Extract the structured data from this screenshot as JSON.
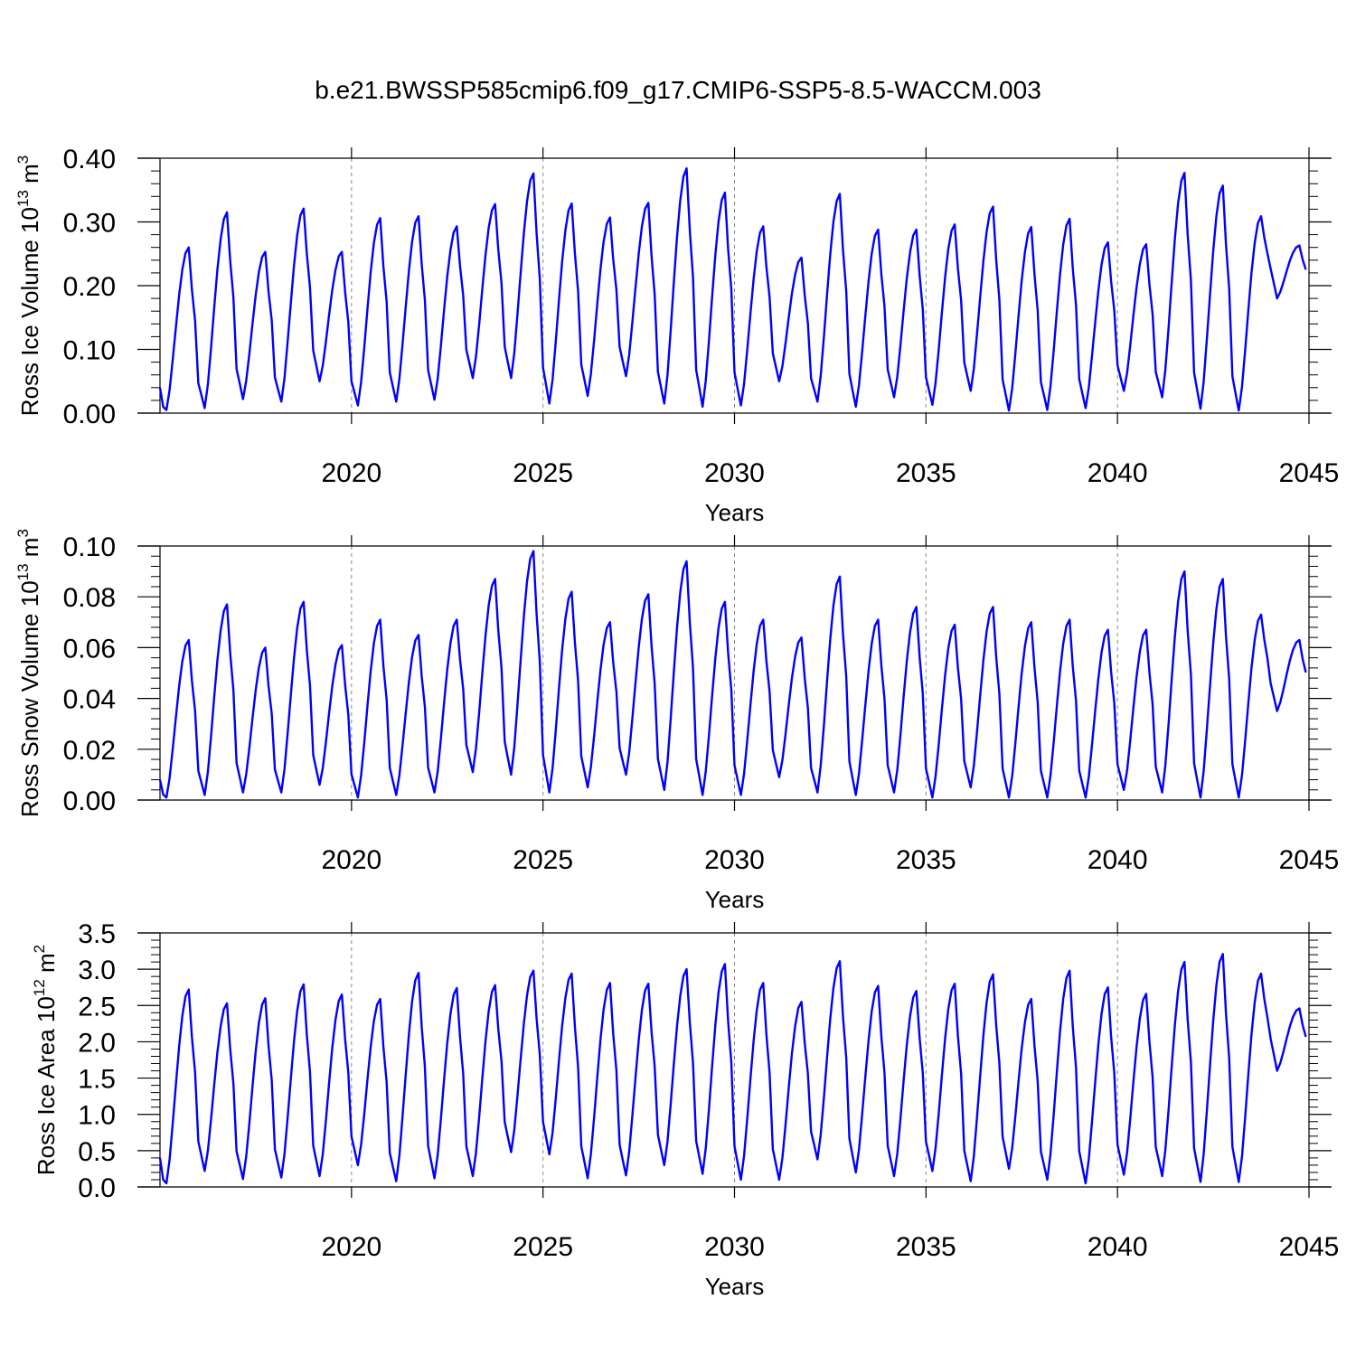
{
  "title": "b.e21.BWSSP585cmip6.f09_g17.CMIP6-SSP5-8.5-WACCM.003",
  "colors": {
    "series": "#0000ff",
    "axis": "#000000",
    "grid": "#888888"
  },
  "panels": [
    {
      "ylabel": "Ross Ice Volume 10",
      "ylabel_exp1": "13",
      "ylabel_mid": " m",
      "ylabel_exp2": "3",
      "xlabel": "Years",
      "ytick_labels": [
        "0.00",
        "0.10",
        "0.20",
        "0.30",
        "0.40"
      ]
    },
    {
      "ylabel": "Ross Snow Volume 10",
      "ylabel_exp1": "13",
      "ylabel_mid": " m",
      "ylabel_exp2": "3",
      "xlabel": "Years",
      "ytick_labels": [
        "0.00",
        "0.02",
        "0.04",
        "0.06",
        "0.08",
        "0.10"
      ]
    },
    {
      "ylabel": "Ross Ice Area 10",
      "ylabel_exp1": "12",
      "ylabel_mid": " m",
      "ylabel_exp2": "2",
      "xlabel": "Years",
      "ytick_labels": [
        "0.0",
        "0.5",
        "1.0",
        "1.5",
        "2.0",
        "2.5",
        "3.0",
        "3.5"
      ]
    }
  ],
  "xtick_labels": [
    "2020",
    "2025",
    "2030",
    "2035",
    "2040",
    "2045"
  ],
  "chart_data": [
    {
      "type": "line",
      "xlabel": "Years",
      "ylabel": "Ross Ice Volume 10^13 m^3",
      "xlim": [
        2015.0,
        2045.0
      ],
      "ylim": [
        0.0,
        0.4
      ],
      "xticks": [
        2020,
        2025,
        2030,
        2035,
        2040,
        2045
      ],
      "yticks": [
        0.0,
        0.1,
        0.2,
        0.3,
        0.4
      ],
      "grid": "dashed vertical lines at major x ticks",
      "series": [
        {
          "x_start": 2015.0,
          "x_step": 0.0833333,
          "annual_min_month": 2,
          "annual_max_month": 9,
          "annual_max": [
            0.26,
            0.315,
            0.253,
            0.321,
            0.253,
            0.306,
            0.309,
            0.293,
            0.328,
            0.376,
            0.329,
            0.307,
            0.33,
            0.384,
            0.346,
            0.293,
            0.244,
            0.344,
            0.288,
            0.288,
            0.296,
            0.324,
            0.292,
            0.305,
            0.268,
            0.265,
            0.377,
            0.357,
            0.309,
            0.263
          ],
          "annual_min": [
            0.005,
            0.008,
            0.022,
            0.018,
            0.05,
            0.012,
            0.018,
            0.021,
            0.055,
            0.055,
            0.015,
            0.027,
            0.058,
            0.015,
            0.01,
            0.012,
            0.05,
            0.018,
            0.01,
            0.025,
            0.013,
            0.035,
            0.004,
            0.005,
            0.008,
            0.035,
            0.025,
            0.007,
            0.004,
            0.18
          ]
        }
      ]
    },
    {
      "type": "line",
      "xlabel": "Years",
      "ylabel": "Ross Snow Volume 10^13 m^3",
      "xlim": [
        2015.0,
        2045.0
      ],
      "ylim": [
        0.0,
        0.1
      ],
      "xticks": [
        2020,
        2025,
        2030,
        2035,
        2040,
        2045
      ],
      "yticks": [
        0.0,
        0.02,
        0.04,
        0.06,
        0.08,
        0.1
      ],
      "grid": "dashed vertical lines at major x ticks",
      "series": [
        {
          "x_start": 2015.0,
          "x_step": 0.0833333,
          "annual_min_month": 2,
          "annual_max_month": 9,
          "annual_max": [
            0.063,
            0.077,
            0.06,
            0.078,
            0.061,
            0.071,
            0.065,
            0.071,
            0.087,
            0.098,
            0.082,
            0.07,
            0.081,
            0.094,
            0.078,
            0.071,
            0.064,
            0.088,
            0.071,
            0.076,
            0.069,
            0.076,
            0.07,
            0.071,
            0.067,
            0.067,
            0.09,
            0.087,
            0.073,
            0.063
          ],
          "annual_min": [
            0.001,
            0.002,
            0.003,
            0.003,
            0.006,
            0.001,
            0.002,
            0.003,
            0.011,
            0.01,
            0.003,
            0.005,
            0.01,
            0.004,
            0.002,
            0.002,
            0.009,
            0.003,
            0.002,
            0.003,
            0.001,
            0.005,
            0.001,
            0.001,
            0.001,
            0.004,
            0.003,
            0.001,
            0.001,
            0.035
          ]
        }
      ]
    },
    {
      "type": "line",
      "xlabel": "Years",
      "ylabel": "Ross Ice Area 10^12 m^2",
      "xlim": [
        2015.0,
        2045.0
      ],
      "ylim": [
        0.0,
        3.5
      ],
      "xticks": [
        2020,
        2025,
        2030,
        2035,
        2040,
        2045
      ],
      "yticks": [
        0.0,
        0.5,
        1.0,
        1.5,
        2.0,
        2.5,
        3.0,
        3.5
      ],
      "grid": "dashed vertical lines at major x ticks",
      "series": [
        {
          "x_start": 2015.0,
          "x_step": 0.0833333,
          "annual_min_month": 2,
          "annual_max_month": 9,
          "annual_max": [
            2.72,
            2.53,
            2.6,
            2.79,
            2.65,
            2.59,
            2.95,
            2.74,
            2.78,
            2.98,
            2.94,
            2.81,
            2.8,
            3.0,
            3.07,
            2.81,
            2.55,
            3.11,
            2.77,
            2.7,
            2.8,
            2.93,
            2.59,
            2.98,
            2.75,
            2.66,
            3.1,
            3.21,
            2.94,
            2.46
          ],
          "annual_min": [
            0.05,
            0.22,
            0.11,
            0.13,
            0.15,
            0.3,
            0.08,
            0.12,
            0.15,
            0.48,
            0.45,
            0.12,
            0.16,
            0.3,
            0.18,
            0.1,
            0.1,
            0.38,
            0.2,
            0.15,
            0.22,
            0.08,
            0.25,
            0.1,
            0.05,
            0.17,
            0.15,
            0.07,
            0.07,
            1.6
          ]
        }
      ]
    }
  ]
}
